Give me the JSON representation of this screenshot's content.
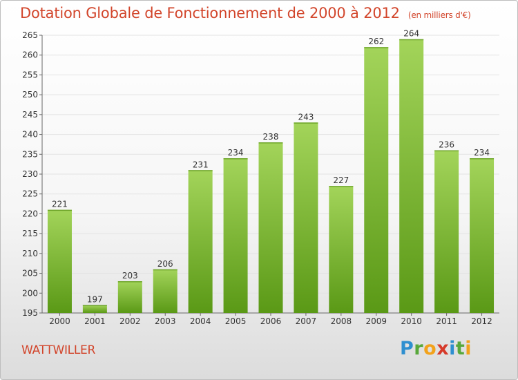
{
  "header": {
    "title": "Dotation Globale de Fonctionnement de 2000 à 2012",
    "unit": "(en milliers d'€)"
  },
  "footer": {
    "commune": "WATTWILLER",
    "logo": "Proxiti"
  },
  "colors": {
    "title": "#d2452b",
    "bar_top": "#9fd154",
    "bar_bottom": "#5b9a17",
    "grid": "#e2e2e2"
  },
  "chart_data": {
    "type": "bar",
    "title": "Dotation Globale de Fonctionnement de 2000 à 2012",
    "xlabel": "",
    "ylabel": "",
    "categories": [
      "2000",
      "2001",
      "2002",
      "2003",
      "2004",
      "2005",
      "2006",
      "2007",
      "2008",
      "2009",
      "2010",
      "2011",
      "2012"
    ],
    "values": [
      221,
      197,
      203,
      206,
      231,
      234,
      238,
      243,
      227,
      262,
      264,
      236,
      234
    ],
    "ylim": [
      195,
      265
    ],
    "yticks": [
      195,
      200,
      205,
      210,
      215,
      220,
      225,
      230,
      235,
      240,
      245,
      250,
      255,
      260,
      265
    ],
    "grid": true,
    "legend": "none"
  }
}
